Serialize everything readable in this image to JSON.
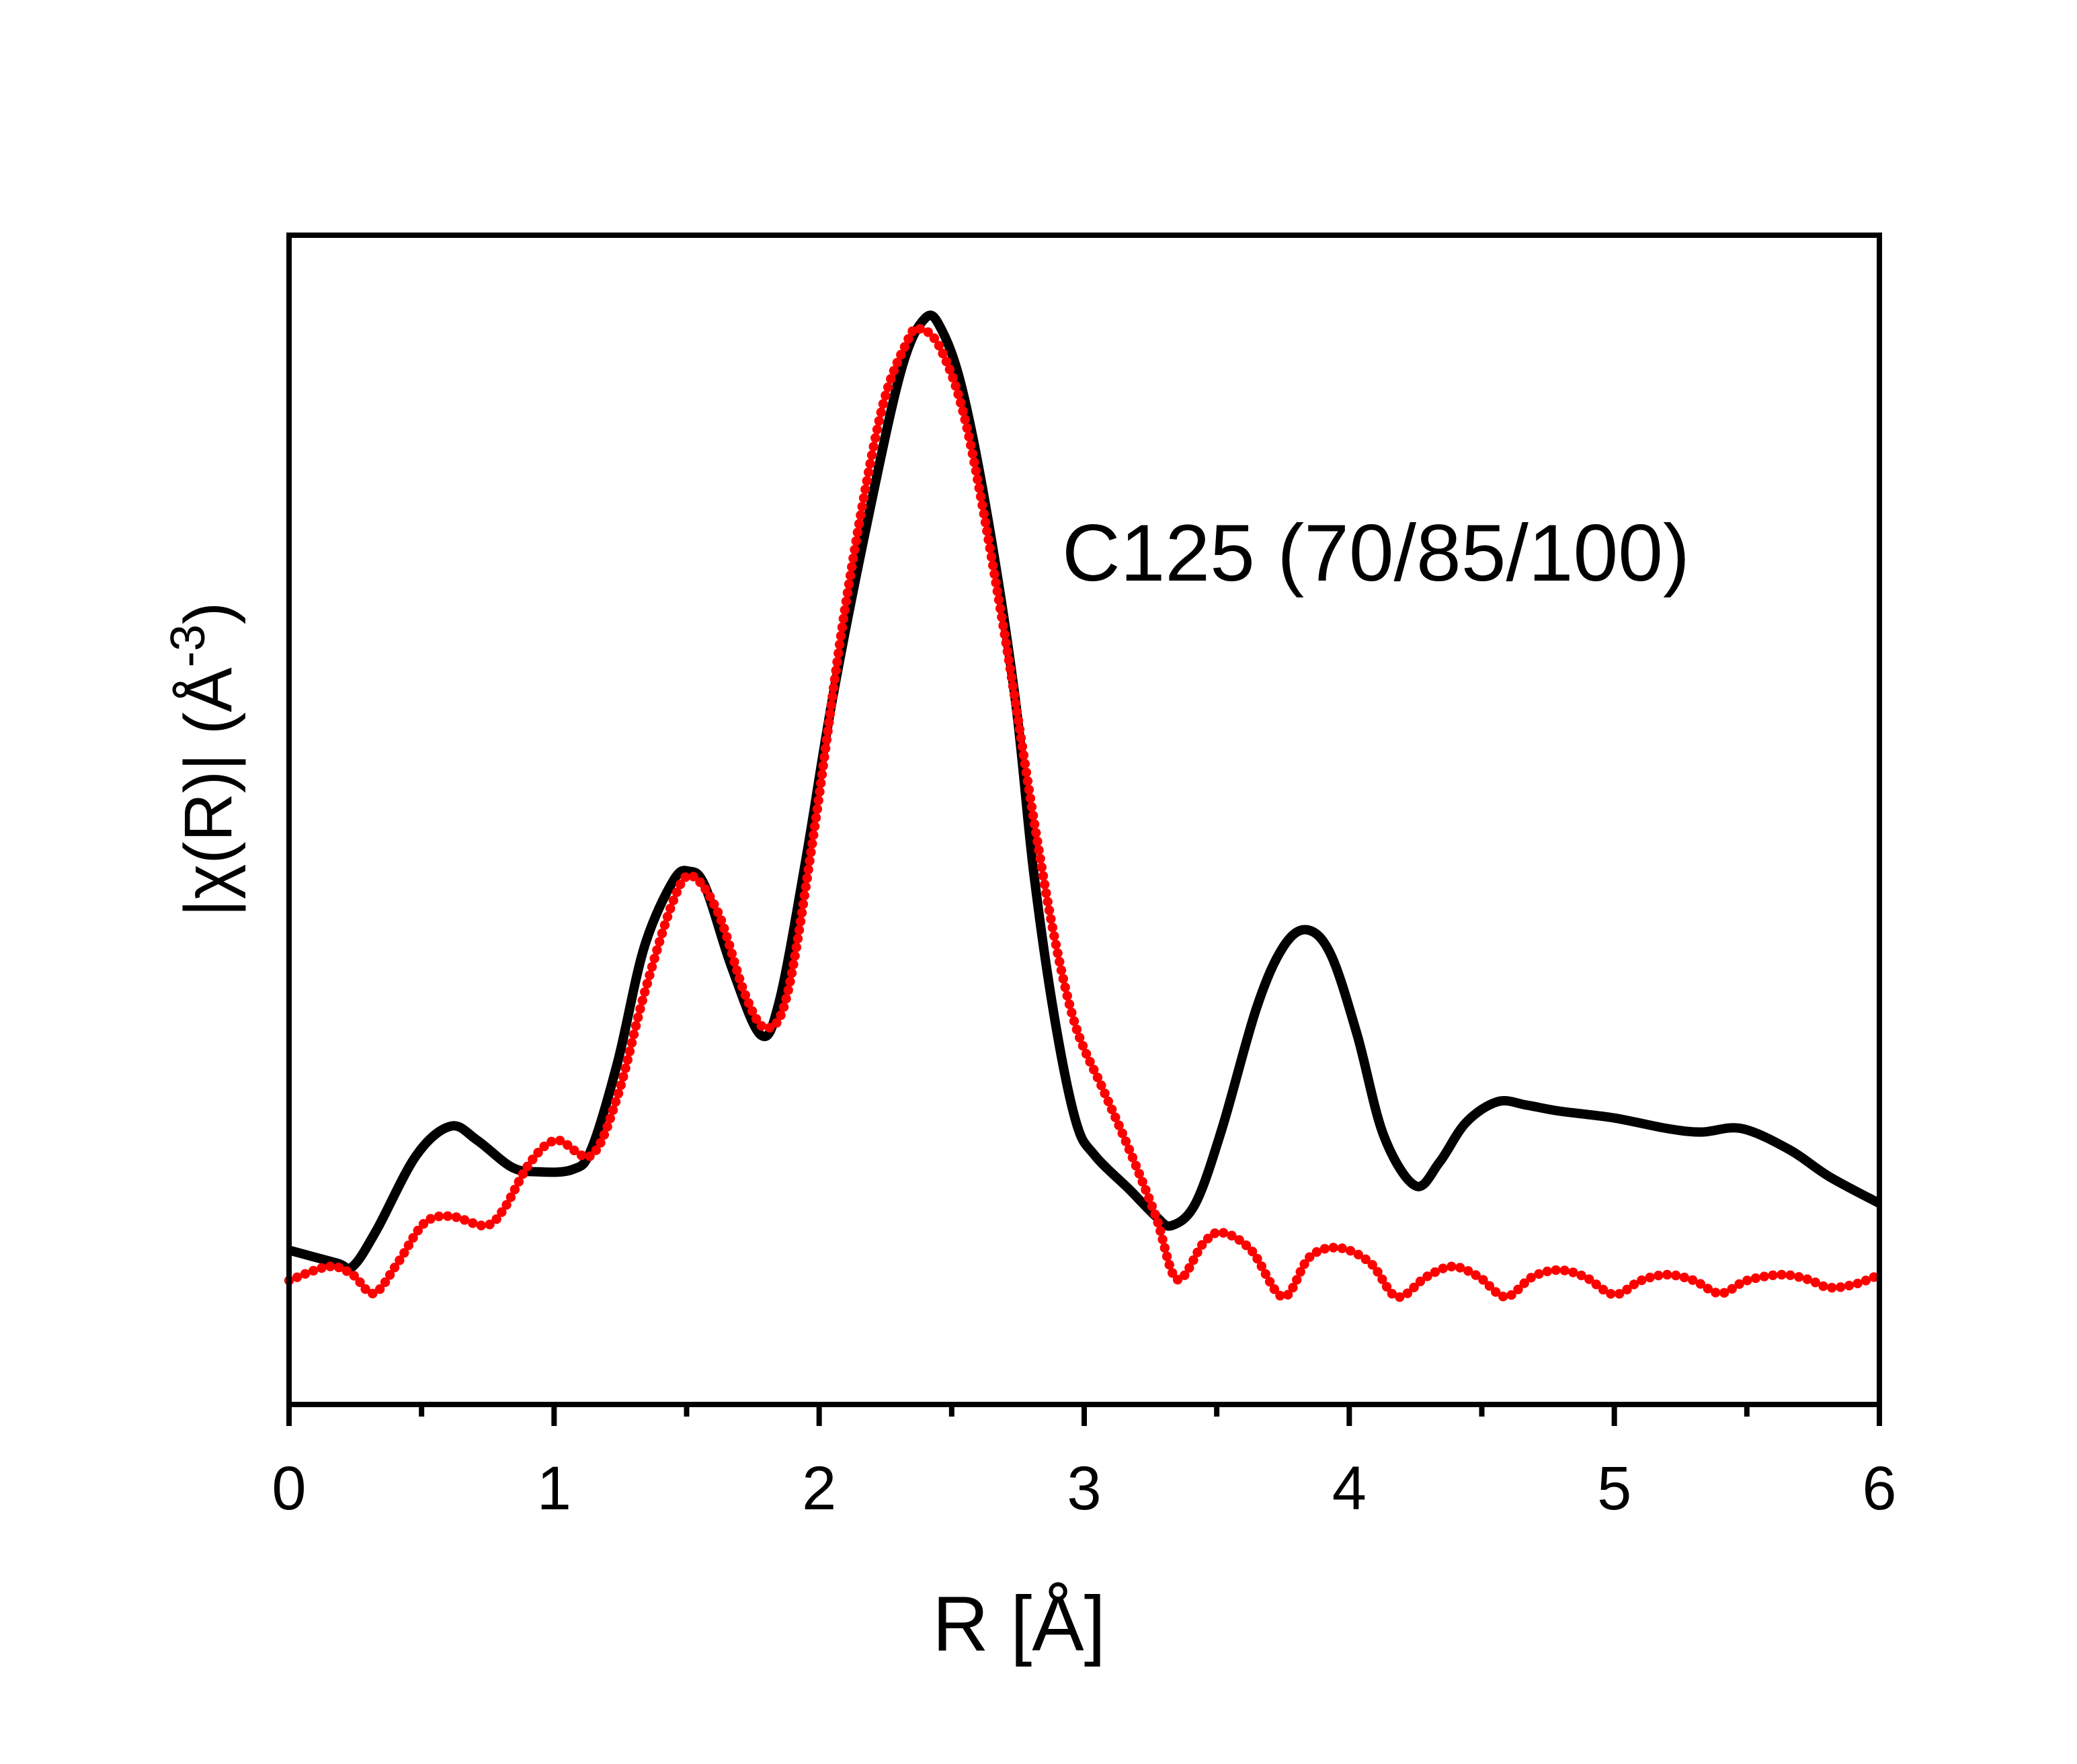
{
  "chart_data": {
    "type": "line",
    "title": "",
    "annotation": "C125 (70/85/100)",
    "xlabel": "R [Å]",
    "ylabel_main": "|χ(R)| (Å",
    "ylabel_sup": "-3",
    "ylabel_close": ")",
    "xlim": [
      0,
      6
    ],
    "ylim": [
      0,
      10
    ],
    "y_ticks_shown": false,
    "grid": false,
    "x_ticks": [
      "0",
      "1",
      "2",
      "3",
      "4",
      "5",
      "6"
    ],
    "x_tick_values": [
      0,
      1,
      2,
      3,
      4,
      5,
      6
    ],
    "x_minor_tick_values": [
      0.5,
      1.5,
      2.5,
      3.5,
      4.5,
      5.5
    ],
    "series": [
      {
        "style": "solid-line",
        "color": "#000000",
        "x": [
          0,
          0.18,
          0.24,
          0.33,
          0.48,
          0.61,
          0.71,
          0.84,
          0.94,
          1.07,
          1.14,
          1.24,
          1.34,
          1.45,
          1.51,
          1.57,
          1.67,
          1.78,
          1.85,
          1.95,
          2.05,
          2.18,
          2.31,
          2.4,
          2.46,
          2.54,
          2.64,
          2.74,
          2.81,
          2.89,
          2.97,
          3.04,
          3.17,
          3.27,
          3.33,
          3.42,
          3.52,
          3.65,
          3.75,
          3.84,
          3.93,
          4.03,
          4.13,
          4.25,
          4.34,
          4.44,
          4.56,
          4.67,
          4.79,
          5.0,
          5.2,
          5.33,
          5.48,
          5.66,
          5.81,
          6.0
        ],
        "y": [
          1.32,
          1.21,
          1.18,
          1.49,
          2.13,
          2.38,
          2.26,
          2.03,
          1.99,
          2.01,
          2.18,
          2.93,
          3.91,
          4.48,
          4.56,
          4.43,
          3.74,
          3.16,
          3.45,
          4.66,
          6.03,
          7.53,
          8.85,
          9.29,
          9.2,
          8.68,
          7.53,
          6.03,
          4.54,
          3.28,
          2.41,
          2.13,
          1.84,
          1.61,
          1.53,
          1.72,
          2.36,
          3.39,
          3.91,
          4.06,
          3.85,
          3.16,
          2.3,
          1.87,
          2.07,
          2.41,
          2.59,
          2.56,
          2.51,
          2.45,
          2.36,
          2.33,
          2.36,
          2.18,
          1.95,
          1.72
        ]
      },
      {
        "style": "dotted",
        "color": "#ff0000",
        "x": [
          0,
          0.15,
          0.24,
          0.32,
          0.41,
          0.51,
          0.61,
          0.74,
          0.81,
          0.91,
          1.01,
          1.14,
          1.24,
          1.34,
          1.45,
          1.52,
          1.62,
          1.72,
          1.8,
          1.88,
          1.98,
          2.1,
          2.23,
          2.33,
          2.38,
          2.46,
          2.56,
          2.69,
          2.81,
          2.89,
          2.97,
          3.07,
          3.17,
          3.27,
          3.35,
          3.45,
          3.52,
          3.63,
          3.75,
          3.85,
          3.96,
          4.08,
          4.18,
          4.29,
          4.39,
          4.49,
          4.59,
          4.69,
          4.79,
          4.89,
          5.0,
          5.1,
          5.2,
          5.3,
          5.4,
          5.5,
          5.63,
          5.73,
          5.81,
          5.91,
          6.0
        ],
        "y": [
          1.06,
          1.18,
          1.11,
          0.95,
          1.21,
          1.55,
          1.61,
          1.53,
          1.67,
          2.07,
          2.26,
          2.13,
          2.64,
          3.51,
          4.31,
          4.52,
          4.2,
          3.51,
          3.22,
          3.51,
          4.89,
          6.84,
          8.45,
          9.08,
          9.2,
          9.02,
          8.33,
          6.72,
          5.0,
          3.97,
          3.22,
          2.7,
          2.18,
          1.61,
          1.07,
          1.38,
          1.47,
          1.32,
          0.92,
          1.26,
          1.34,
          1.21,
          0.92,
          1.09,
          1.18,
          1.09,
          0.92,
          1.09,
          1.15,
          1.09,
          0.94,
          1.06,
          1.11,
          1.06,
          0.95,
          1.06,
          1.11,
          1.07,
          1.0,
          1.03,
          1.11
        ]
      }
    ]
  }
}
